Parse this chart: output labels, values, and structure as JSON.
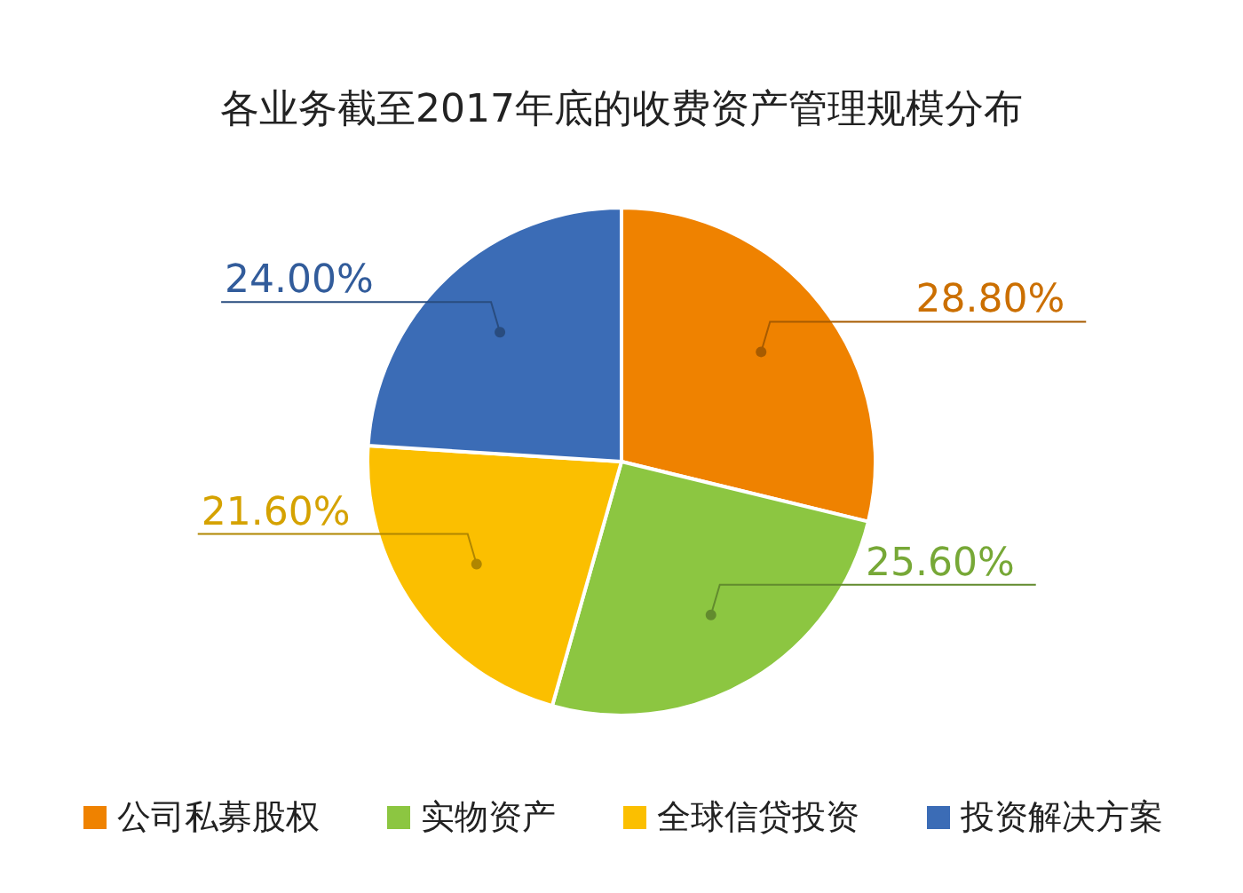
{
  "chart_data": {
    "type": "pie",
    "title": "各业务截至2017年底的收费资产管理规模分布",
    "categories": [
      "公司私募股权",
      "实物资产",
      "全球信贷投资",
      "投资解决方案"
    ],
    "values": [
      28.8,
      25.6,
      21.6,
      24.0
    ],
    "value_labels": [
      "28.80%",
      "25.60%",
      "21.60%",
      "24.00%"
    ],
    "colors": [
      "#ef8200",
      "#8cc641",
      "#fbbf00",
      "#3b6cb6"
    ],
    "legend": "bottom"
  }
}
